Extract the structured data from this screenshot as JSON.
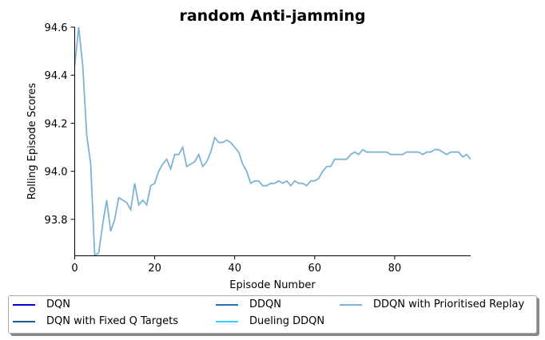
{
  "chart_data": {
    "type": "line",
    "title": "random Anti-jamming",
    "xlabel": "Episode Number",
    "ylabel": "Rolling Episode Scores",
    "xlim": [
      0,
      99
    ],
    "ylim": [
      93.65,
      94.6
    ],
    "x_ticks": [
      0,
      20,
      40,
      60,
      80
    ],
    "y_ticks": [
      93.8,
      94.0,
      94.2,
      94.4,
      94.6
    ],
    "x_tick_labels": [
      "0",
      "20",
      "40",
      "60",
      "80"
    ],
    "y_tick_labels": [
      "93.8",
      "94.0",
      "94.2",
      "94.4",
      "94.6"
    ],
    "grid": false,
    "legend_position": "bottom",
    "series": [
      {
        "name": "DQN",
        "color": "#0000cd",
        "values": []
      },
      {
        "name": "DQN with Fixed Q Targets",
        "color": "#1f5a96",
        "values": []
      },
      {
        "name": "DDQN",
        "color": "#2a6fb0",
        "values": []
      },
      {
        "name": "Dueling DDQN",
        "color": "#33ccff",
        "values": []
      },
      {
        "name": "DDQN with Prioritised Replay",
        "color": "#7fb3d5",
        "values": [
          94.44,
          94.6,
          94.44,
          94.15,
          94.03,
          93.65,
          93.66,
          93.78,
          93.88,
          93.75,
          93.8,
          93.89,
          93.88,
          93.87,
          93.84,
          93.95,
          93.86,
          93.88,
          93.86,
          93.94,
          93.95,
          94.0,
          94.03,
          94.05,
          94.01,
          94.07,
          94.07,
          94.1,
          94.02,
          94.03,
          94.04,
          94.07,
          94.02,
          94.04,
          94.08,
          94.14,
          94.12,
          94.12,
          94.13,
          94.12,
          94.1,
          94.08,
          94.03,
          94.0,
          93.95,
          93.96,
          93.96,
          93.94,
          93.94,
          93.95,
          93.95,
          93.96,
          93.95,
          93.96,
          93.94,
          93.96,
          93.95,
          93.95,
          93.94,
          93.96,
          93.96,
          93.97,
          94.0,
          94.02,
          94.02,
          94.05,
          94.05,
          94.05,
          94.05,
          94.07,
          94.08,
          94.07,
          94.09,
          94.08,
          94.08,
          94.08,
          94.08,
          94.08,
          94.08,
          94.07,
          94.07,
          94.07,
          94.07,
          94.08,
          94.08,
          94.08,
          94.08,
          94.07,
          94.08,
          94.08,
          94.09,
          94.09,
          94.08,
          94.07,
          94.08,
          94.08,
          94.08,
          94.06,
          94.07,
          94.05
        ]
      }
    ]
  }
}
